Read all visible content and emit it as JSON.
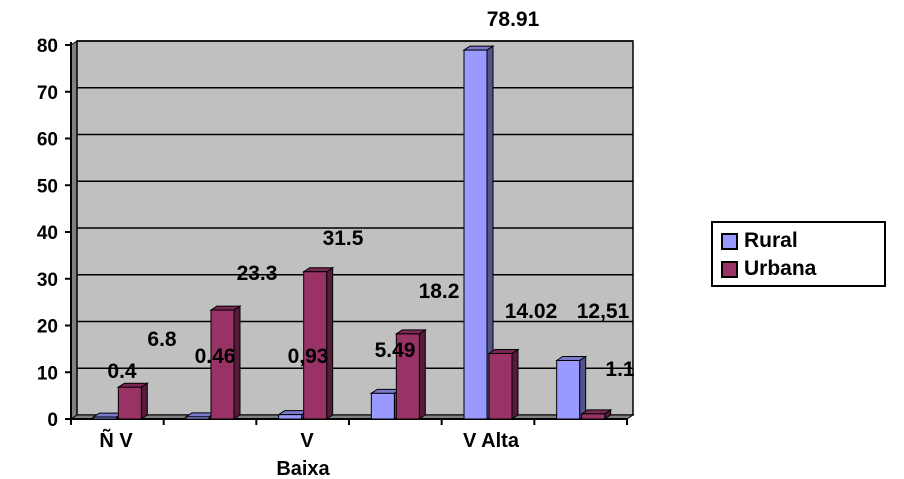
{
  "chart_data": {
    "type": "bar",
    "categories": [
      "Ñ V",
      "Baixa",
      "V",
      "",
      "V Alta",
      ""
    ],
    "series": [
      {
        "name": "Rural",
        "values": [
          0.4,
          0.46,
          0.93,
          5.49,
          78.91,
          12.51
        ],
        "labels": [
          "0.4",
          "0.46",
          "0,93",
          "5.49",
          "78.91",
          "12,51"
        ],
        "color": "#9999FF"
      },
      {
        "name": "Urbana",
        "values": [
          6.8,
          23.3,
          31.5,
          18.2,
          14.02,
          1.1
        ],
        "labels": [
          "6.8",
          "23.3",
          "31.5",
          "18.2",
          "14.02",
          "1.1"
        ],
        "color": "#993366"
      }
    ],
    "ylim": [
      0,
      80
    ],
    "yticks": [
      0,
      10,
      20,
      30,
      40,
      50,
      60,
      70,
      80
    ],
    "grid": true,
    "plot_background": "#C0C0C0",
    "legend_position": "right"
  }
}
